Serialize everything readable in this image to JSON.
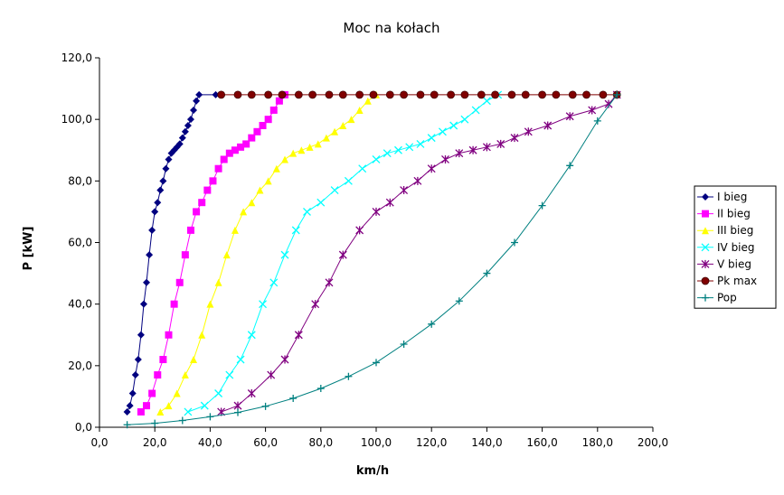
{
  "chart_data": {
    "type": "line",
    "title": "Moc na kołach",
    "xlabel": "km/h",
    "ylabel": "P [kW]",
    "xlim": [
      0,
      200
    ],
    "ylim": [
      0,
      120
    ],
    "x_ticks": [
      "0,0",
      "20,0",
      "40,0",
      "60,0",
      "80,0",
      "100,0",
      "120,0",
      "140,0",
      "160,0",
      "180,0",
      "200,0"
    ],
    "y_ticks": [
      "0,0",
      "20,0",
      "40,0",
      "60,0",
      "80,0",
      "100,0",
      "120,0"
    ],
    "grid": false,
    "legend_position": "right",
    "series": [
      {
        "name": "I bieg",
        "color": "#000080",
        "marker": "diamond",
        "points": [
          [
            10,
            5
          ],
          [
            11,
            7
          ],
          [
            12,
            11
          ],
          [
            13,
            17
          ],
          [
            14,
            22
          ],
          [
            15,
            30
          ],
          [
            16,
            40
          ],
          [
            17,
            47
          ],
          [
            18,
            56
          ],
          [
            19,
            64
          ],
          [
            20,
            70
          ],
          [
            21,
            73
          ],
          [
            22,
            77
          ],
          [
            23,
            80
          ],
          [
            24,
            84
          ],
          [
            25,
            87
          ],
          [
            26,
            89
          ],
          [
            27,
            90
          ],
          [
            28,
            91
          ],
          [
            29,
            92
          ],
          [
            30,
            94
          ],
          [
            31,
            96
          ],
          [
            32,
            98
          ],
          [
            33,
            100
          ],
          [
            34,
            103
          ],
          [
            35,
            106
          ],
          [
            36,
            108
          ],
          [
            42,
            108
          ]
        ]
      },
      {
        "name": "II bieg",
        "color": "#ff00ff",
        "marker": "square",
        "points": [
          [
            15,
            5
          ],
          [
            17,
            7
          ],
          [
            19,
            11
          ],
          [
            21,
            17
          ],
          [
            23,
            22
          ],
          [
            25,
            30
          ],
          [
            27,
            40
          ],
          [
            29,
            47
          ],
          [
            31,
            56
          ],
          [
            33,
            64
          ],
          [
            35,
            70
          ],
          [
            37,
            73
          ],
          [
            39,
            77
          ],
          [
            41,
            80
          ],
          [
            43,
            84
          ],
          [
            45,
            87
          ],
          [
            47,
            89
          ],
          [
            49,
            90
          ],
          [
            51,
            91
          ],
          [
            53,
            92
          ],
          [
            55,
            94
          ],
          [
            57,
            96
          ],
          [
            59,
            98
          ],
          [
            61,
            100
          ],
          [
            63,
            103
          ],
          [
            65,
            106
          ],
          [
            67,
            108
          ]
        ]
      },
      {
        "name": "III bieg",
        "color": "#ffff00",
        "marker": "triangle",
        "points": [
          [
            22,
            5
          ],
          [
            25,
            7
          ],
          [
            28,
            11
          ],
          [
            31,
            17
          ],
          [
            34,
            22
          ],
          [
            37,
            30
          ],
          [
            40,
            40
          ],
          [
            43,
            47
          ],
          [
            46,
            56
          ],
          [
            49,
            64
          ],
          [
            52,
            70
          ],
          [
            55,
            73
          ],
          [
            58,
            77
          ],
          [
            61,
            80
          ],
          [
            64,
            84
          ],
          [
            67,
            87
          ],
          [
            70,
            89
          ],
          [
            73,
            90
          ],
          [
            76,
            91
          ],
          [
            79,
            92
          ],
          [
            82,
            94
          ],
          [
            85,
            96
          ],
          [
            88,
            98
          ],
          [
            91,
            100
          ],
          [
            94,
            103
          ],
          [
            97,
            106
          ],
          [
            100,
            108
          ]
        ]
      },
      {
        "name": "IV bieg",
        "color": "#00ffff",
        "marker": "x",
        "points": [
          [
            32,
            5
          ],
          [
            38,
            7
          ],
          [
            43,
            11
          ],
          [
            47,
            17
          ],
          [
            51,
            22
          ],
          [
            55,
            30
          ],
          [
            59,
            40
          ],
          [
            63,
            47
          ],
          [
            67,
            56
          ],
          [
            71,
            64
          ],
          [
            75,
            70
          ],
          [
            80,
            73
          ],
          [
            85,
            77
          ],
          [
            90,
            80
          ],
          [
            95,
            84
          ],
          [
            100,
            87
          ],
          [
            104,
            89
          ],
          [
            108,
            90
          ],
          [
            112,
            91
          ],
          [
            116,
            92
          ],
          [
            120,
            94
          ],
          [
            124,
            96
          ],
          [
            128,
            98
          ],
          [
            132,
            100
          ],
          [
            136,
            103
          ],
          [
            140,
            106
          ],
          [
            144,
            108
          ]
        ]
      },
      {
        "name": "V bieg",
        "color": "#800080",
        "marker": "star",
        "points": [
          [
            44,
            5
          ],
          [
            50,
            7
          ],
          [
            55,
            11
          ],
          [
            62,
            17
          ],
          [
            67,
            22
          ],
          [
            72,
            30
          ],
          [
            78,
            40
          ],
          [
            83,
            47
          ],
          [
            88,
            56
          ],
          [
            94,
            64
          ],
          [
            100,
            70
          ],
          [
            105,
            73
          ],
          [
            110,
            77
          ],
          [
            115,
            80
          ],
          [
            120,
            84
          ],
          [
            125,
            87
          ],
          [
            130,
            89
          ],
          [
            135,
            90
          ],
          [
            140,
            91
          ],
          [
            145,
            92
          ],
          [
            150,
            94
          ],
          [
            155,
            96
          ],
          [
            162,
            98
          ],
          [
            170,
            101
          ],
          [
            178,
            103
          ],
          [
            184,
            105
          ],
          [
            187,
            108
          ]
        ]
      },
      {
        "name": "Pk max",
        "color": "#800000",
        "marker": "circle",
        "points": [
          [
            44,
            108
          ],
          [
            50,
            108
          ],
          [
            55,
            108
          ],
          [
            61,
            108
          ],
          [
            66,
            108
          ],
          [
            72,
            108
          ],
          [
            77,
            108
          ],
          [
            83,
            108
          ],
          [
            88,
            108
          ],
          [
            94,
            108
          ],
          [
            99,
            108
          ],
          [
            105,
            108
          ],
          [
            110,
            108
          ],
          [
            116,
            108
          ],
          [
            121,
            108
          ],
          [
            127,
            108
          ],
          [
            132,
            108
          ],
          [
            138,
            108
          ],
          [
            143,
            108
          ],
          [
            149,
            108
          ],
          [
            154,
            108
          ],
          [
            160,
            108
          ],
          [
            165,
            108
          ],
          [
            171,
            108
          ],
          [
            176,
            108
          ],
          [
            182,
            108
          ],
          [
            187,
            108
          ]
        ]
      },
      {
        "name": "Pop",
        "color": "#008080",
        "marker": "plus",
        "points": [
          [
            10,
            0.8
          ],
          [
            20,
            1.3
          ],
          [
            30,
            2.2
          ],
          [
            40,
            3.4
          ],
          [
            50,
            4.8
          ],
          [
            60,
            6.8
          ],
          [
            70,
            9.4
          ],
          [
            80,
            12.6
          ],
          [
            90,
            16.5
          ],
          [
            100,
            21
          ],
          [
            110,
            27
          ],
          [
            120,
            33.5
          ],
          [
            130,
            41
          ],
          [
            140,
            50
          ],
          [
            150,
            60
          ],
          [
            160,
            72
          ],
          [
            170,
            85
          ],
          [
            180,
            99.5
          ],
          [
            187,
            108
          ]
        ]
      }
    ]
  }
}
